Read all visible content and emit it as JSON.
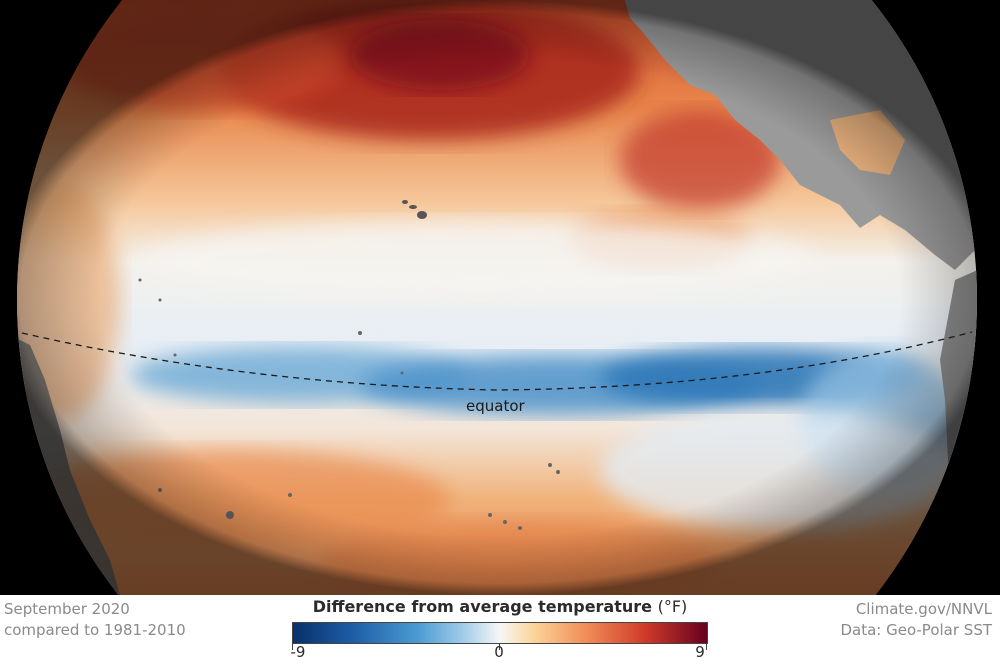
{
  "map": {
    "equator_label": "equator"
  },
  "caption": {
    "date": "September 2020",
    "baseline": "compared to 1981-2010",
    "credit": "Climate.gov/NNVL",
    "source": "Data: Geo-Polar SST"
  },
  "legend": {
    "title": "Difference from average temperature",
    "unit": "(°F)",
    "min_label": "-9",
    "mid_label": "0",
    "max_label": "9",
    "scale": [
      -9,
      0,
      9
    ],
    "colors": {
      "cold": "#08306b",
      "neutral": "#f7f7f7",
      "warm": "#67001f"
    }
  }
}
